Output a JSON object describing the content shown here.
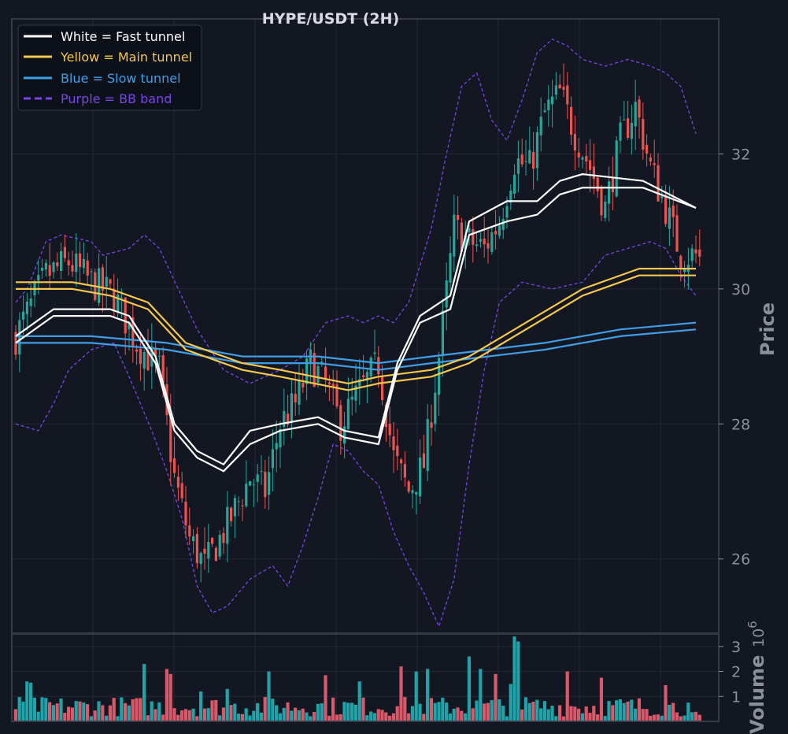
{
  "chart_data": [
    {
      "type": "candlestick",
      "title": "HYPE/USDT (2H)",
      "ylabel": "Price",
      "ylim": [
        24.9,
        34.0
      ],
      "yticks": [
        "26",
        "28",
        "30",
        "32"
      ],
      "grid": true,
      "legend_position": "top-left",
      "legend": [
        {
          "label": "White = Fast tunnel",
          "color": "#ffffff",
          "style": "solid"
        },
        {
          "label": "Yellow = Main tunnel",
          "color": "#f5c84c",
          "style": "solid"
        },
        {
          "label": "Blue = Slow tunnel",
          "color": "#3f9ee8",
          "style": "solid"
        },
        {
          "label": "Purple = BB band",
          "color": "#7a45e8",
          "style": "dashed"
        }
      ],
      "colors": {
        "up": "#26a69a",
        "down": "#ef5350",
        "fast": "#ffffff",
        "main": "#f5c84c",
        "slow": "#3f9ee8",
        "bb": "#7a45e8"
      },
      "price_anchors": [
        [
          0,
          29.3
        ],
        [
          8,
          30.2
        ],
        [
          14,
          30.4
        ],
        [
          20,
          30.1
        ],
        [
          26,
          29.9
        ],
        [
          32,
          29.2
        ],
        [
          38,
          28.8
        ],
        [
          42,
          27.2
        ],
        [
          46,
          26.3
        ],
        [
          50,
          25.9
        ],
        [
          56,
          26.5
        ],
        [
          62,
          27.2
        ],
        [
          66,
          27.0
        ],
        [
          70,
          28.0
        ],
        [
          74,
          28.3
        ],
        [
          78,
          28.9
        ],
        [
          82,
          28.6
        ],
        [
          86,
          28.0
        ],
        [
          90,
          28.4
        ],
        [
          96,
          28.9
        ],
        [
          100,
          27.5
        ],
        [
          104,
          27.0
        ],
        [
          108,
          27.4
        ],
        [
          112,
          29.0
        ],
        [
          116,
          30.9
        ],
        [
          120,
          30.7
        ],
        [
          124,
          30.6
        ],
        [
          128,
          31.0
        ],
        [
          132,
          31.9
        ],
        [
          136,
          31.8
        ],
        [
          140,
          32.6
        ],
        [
          144,
          32.9
        ],
        [
          148,
          32.3
        ],
        [
          152,
          31.8
        ],
        [
          156,
          31.2
        ],
        [
          160,
          32.2
        ],
        [
          164,
          32.7
        ],
        [
          168,
          31.8
        ],
        [
          172,
          31.2
        ],
        [
          176,
          30.5
        ],
        [
          180,
          30.5
        ],
        [
          182,
          30.4
        ]
      ],
      "fast_upper": [
        [
          0,
          29.3
        ],
        [
          10,
          29.7
        ],
        [
          25,
          29.7
        ],
        [
          30,
          29.6
        ],
        [
          37,
          29.0
        ],
        [
          42,
          28.0
        ],
        [
          48,
          27.6
        ],
        [
          55,
          27.4
        ],
        [
          62,
          27.9
        ],
        [
          70,
          28.0
        ],
        [
          80,
          28.1
        ],
        [
          87,
          27.9
        ],
        [
          96,
          27.8
        ],
        [
          101,
          28.9
        ],
        [
          107,
          29.6
        ],
        [
          115,
          29.9
        ],
        [
          120,
          31.0
        ],
        [
          130,
          31.3
        ],
        [
          138,
          31.3
        ],
        [
          144,
          31.6
        ],
        [
          150,
          31.7
        ],
        [
          166,
          31.6
        ],
        [
          180,
          31.2
        ]
      ],
      "fast_lower": [
        [
          0,
          29.2
        ],
        [
          10,
          29.6
        ],
        [
          25,
          29.6
        ],
        [
          30,
          29.5
        ],
        [
          37,
          28.9
        ],
        [
          42,
          27.9
        ],
        [
          48,
          27.5
        ],
        [
          55,
          27.3
        ],
        [
          62,
          27.7
        ],
        [
          70,
          27.9
        ],
        [
          80,
          28.0
        ],
        [
          87,
          27.8
        ],
        [
          96,
          27.7
        ],
        [
          101,
          28.8
        ],
        [
          107,
          29.5
        ],
        [
          115,
          29.7
        ],
        [
          120,
          30.8
        ],
        [
          130,
          31.0
        ],
        [
          138,
          31.1
        ],
        [
          144,
          31.4
        ],
        [
          150,
          31.5
        ],
        [
          166,
          31.5
        ],
        [
          180,
          31.2
        ]
      ],
      "main_upper": [
        [
          0,
          30.1
        ],
        [
          15,
          30.1
        ],
        [
          25,
          30.0
        ],
        [
          35,
          29.8
        ],
        [
          45,
          29.2
        ],
        [
          60,
          28.9
        ],
        [
          70,
          28.8
        ],
        [
          88,
          28.6
        ],
        [
          96,
          28.7
        ],
        [
          110,
          28.8
        ],
        [
          120,
          29.0
        ],
        [
          135,
          29.5
        ],
        [
          150,
          30.0
        ],
        [
          165,
          30.3
        ],
        [
          180,
          30.3
        ]
      ],
      "main_lower": [
        [
          0,
          30.0
        ],
        [
          15,
          30.0
        ],
        [
          25,
          29.9
        ],
        [
          35,
          29.7
        ],
        [
          45,
          29.1
        ],
        [
          60,
          28.8
        ],
        [
          70,
          28.7
        ],
        [
          88,
          28.5
        ],
        [
          96,
          28.6
        ],
        [
          110,
          28.7
        ],
        [
          120,
          28.9
        ],
        [
          135,
          29.4
        ],
        [
          150,
          29.9
        ],
        [
          165,
          30.2
        ],
        [
          180,
          30.2
        ]
      ],
      "slow_upper": [
        [
          0,
          29.3
        ],
        [
          20,
          29.3
        ],
        [
          40,
          29.2
        ],
        [
          60,
          29.0
        ],
        [
          80,
          29.0
        ],
        [
          96,
          28.9
        ],
        [
          110,
          29.0
        ],
        [
          125,
          29.1
        ],
        [
          140,
          29.2
        ],
        [
          160,
          29.4
        ],
        [
          180,
          29.5
        ]
      ],
      "slow_lower": [
        [
          0,
          29.2
        ],
        [
          20,
          29.2
        ],
        [
          40,
          29.1
        ],
        [
          60,
          28.9
        ],
        [
          80,
          28.9
        ],
        [
          96,
          28.8
        ],
        [
          110,
          28.9
        ],
        [
          125,
          29.0
        ],
        [
          140,
          29.1
        ],
        [
          160,
          29.3
        ],
        [
          180,
          29.4
        ]
      ],
      "bb_upper": [
        [
          0,
          29.8
        ],
        [
          3,
          30.0
        ],
        [
          8,
          30.7
        ],
        [
          12,
          30.8
        ],
        [
          20,
          30.7
        ],
        [
          23,
          30.5
        ],
        [
          30,
          30.6
        ],
        [
          34,
          30.8
        ],
        [
          38,
          30.6
        ],
        [
          43,
          30.0
        ],
        [
          48,
          29.4
        ],
        [
          55,
          28.8
        ],
        [
          62,
          28.6
        ],
        [
          70,
          28.8
        ],
        [
          76,
          29.0
        ],
        [
          82,
          29.5
        ],
        [
          88,
          29.6
        ],
        [
          92,
          29.5
        ],
        [
          96,
          29.6
        ],
        [
          100,
          29.5
        ],
        [
          104,
          29.8
        ],
        [
          110,
          30.9
        ],
        [
          114,
          32.0
        ],
        [
          118,
          33.0
        ],
        [
          122,
          33.2
        ],
        [
          126,
          32.5
        ],
        [
          130,
          32.2
        ],
        [
          134,
          32.8
        ],
        [
          138,
          33.5
        ],
        [
          142,
          33.7
        ],
        [
          146,
          33.6
        ],
        [
          150,
          33.4
        ],
        [
          156,
          33.3
        ],
        [
          162,
          33.4
        ],
        [
          168,
          33.3
        ],
        [
          172,
          33.2
        ],
        [
          176,
          33.0
        ],
        [
          180,
          32.3
        ]
      ],
      "bb_lower": [
        [
          0,
          28.0
        ],
        [
          6,
          27.9
        ],
        [
          10,
          28.3
        ],
        [
          14,
          28.8
        ],
        [
          20,
          29.1
        ],
        [
          26,
          29.2
        ],
        [
          30,
          28.7
        ],
        [
          36,
          27.9
        ],
        [
          40,
          27.3
        ],
        [
          44,
          26.6
        ],
        [
          48,
          25.6
        ],
        [
          52,
          25.2
        ],
        [
          56,
          25.3
        ],
        [
          62,
          25.7
        ],
        [
          68,
          25.9
        ],
        [
          72,
          25.6
        ],
        [
          76,
          26.2
        ],
        [
          80,
          26.9
        ],
        [
          84,
          27.7
        ],
        [
          88,
          27.6
        ],
        [
          92,
          27.3
        ],
        [
          96,
          27.1
        ],
        [
          100,
          26.4
        ],
        [
          104,
          25.9
        ],
        [
          108,
          25.5
        ],
        [
          112,
          25.0
        ],
        [
          116,
          25.7
        ],
        [
          120,
          27.4
        ],
        [
          124,
          28.8
        ],
        [
          128,
          29.8
        ],
        [
          134,
          30.1
        ],
        [
          142,
          30.0
        ],
        [
          150,
          30.1
        ],
        [
          156,
          30.5
        ],
        [
          162,
          30.6
        ],
        [
          168,
          30.7
        ],
        [
          172,
          30.6
        ],
        [
          176,
          30.2
        ],
        [
          180,
          29.9
        ]
      ]
    },
    {
      "type": "bar",
      "ylabel": "Volume",
      "yunit": "10",
      "yunit_exponent": "6",
      "ylim": [
        0,
        3.5
      ],
      "yticks": [
        "1",
        "2",
        "3"
      ],
      "n_bars": 182,
      "spikes": [
        [
          3,
          1.6
        ],
        [
          4,
          1.55
        ],
        [
          34,
          2.3
        ],
        [
          40,
          2.1
        ],
        [
          41,
          1.9
        ],
        [
          49,
          1.2
        ],
        [
          56,
          1.3
        ],
        [
          67,
          2.0
        ],
        [
          82,
          1.85
        ],
        [
          91,
          1.6
        ],
        [
          102,
          2.2
        ],
        [
          106,
          2.0
        ],
        [
          109,
          2.1
        ],
        [
          120,
          2.6
        ],
        [
          123,
          2.1
        ],
        [
          127,
          1.9
        ],
        [
          131,
          1.5
        ],
        [
          132,
          3.4
        ],
        [
          133,
          3.2
        ],
        [
          146,
          2.0
        ],
        [
          155,
          1.75
        ],
        [
          172,
          1.45
        ]
      ]
    }
  ]
}
